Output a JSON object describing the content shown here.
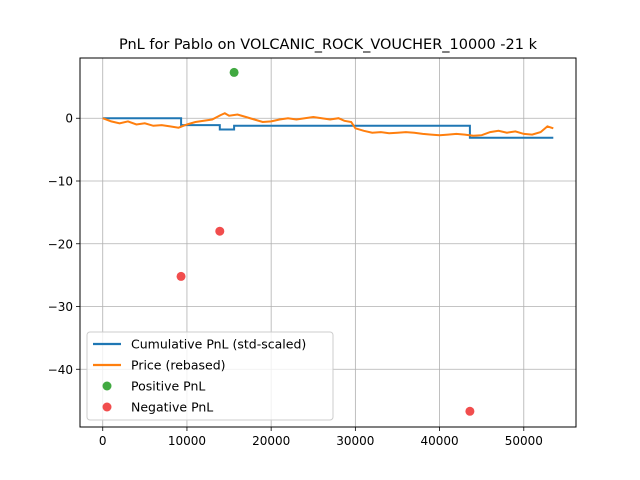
{
  "chart_data": {
    "type": "line",
    "title": "PnL for Pablo on VOLCANIC_ROCK_VOUCHER_10000 -21 k",
    "xlabel": "",
    "ylabel": "",
    "xlim": [
      -2700,
      56200
    ],
    "ylim": [
      -49.2,
      9.6
    ],
    "xticks": [
      0,
      10000,
      20000,
      30000,
      40000,
      50000
    ],
    "xtick_labels": [
      "0",
      "10000",
      "20000",
      "30000",
      "40000",
      "50000"
    ],
    "yticks": [
      0,
      -10,
      -20,
      -30,
      -40
    ],
    "ytick_labels": [
      "0",
      "−10",
      "−20",
      "−30",
      "−40"
    ],
    "grid": true,
    "legend_position": "lower-left",
    "series": [
      {
        "name": "Cumulative PnL (std-scaled)",
        "kind": "step",
        "color": "#1f77b4",
        "x": [
          0,
          9300,
          9300,
          13900,
          13900,
          15600,
          15600,
          43600,
          43600,
          53500
        ],
        "y": [
          0,
          0,
          -1.1,
          -1.1,
          -1.8,
          -1.8,
          -1.2,
          -1.2,
          -3.1,
          -3.1
        ]
      },
      {
        "name": "Price (rebased)",
        "kind": "line",
        "color": "#ff7f0e",
        "x": [
          0,
          1000,
          2000,
          3000,
          4000,
          5000,
          6000,
          7000,
          8000,
          9000,
          10000,
          11000,
          12000,
          13000,
          14000,
          14500,
          15000,
          16000,
          17000,
          18000,
          19000,
          20000,
          21000,
          22000,
          23000,
          24000,
          25000,
          26000,
          27000,
          28000,
          28700,
          29500,
          30000,
          31000,
          32000,
          33000,
          34000,
          35000,
          36000,
          37000,
          38000,
          39000,
          40000,
          41000,
          42000,
          43000,
          44000,
          45000,
          46000,
          47000,
          48000,
          49000,
          50000,
          51000,
          52000,
          52800,
          53500
        ],
        "y": [
          0,
          -0.5,
          -0.8,
          -0.5,
          -1.0,
          -0.8,
          -1.2,
          -1.1,
          -1.3,
          -1.5,
          -1.0,
          -0.6,
          -0.4,
          -0.2,
          0.5,
          0.8,
          0.4,
          0.6,
          0.2,
          -0.2,
          -0.6,
          -0.5,
          -0.2,
          0,
          -0.2,
          0,
          0.2,
          0,
          -0.2,
          0,
          -0.4,
          -0.6,
          -1.6,
          -2.0,
          -2.3,
          -2.2,
          -2.4,
          -2.3,
          -2.2,
          -2.3,
          -2.5,
          -2.6,
          -2.7,
          -2.6,
          -2.5,
          -2.6,
          -2.8,
          -2.7,
          -2.2,
          -2.0,
          -2.3,
          -2.1,
          -2.5,
          -2.6,
          -2.2,
          -1.3,
          -1.6
        ]
      }
    ],
    "scatter": [
      {
        "name": "Positive PnL",
        "color": "#2ca02c",
        "points": [
          [
            15600,
            7.3
          ]
        ]
      },
      {
        "name": "Negative PnL",
        "color": "#f03a3a",
        "points": [
          [
            9300,
            -25.2
          ],
          [
            13900,
            -18.0
          ],
          [
            43600,
            -46.7
          ]
        ]
      }
    ],
    "legend": [
      {
        "label": "Cumulative PnL (std-scaled)",
        "marker": "line",
        "color": "#1f77b4"
      },
      {
        "label": "Price (rebased)",
        "marker": "line",
        "color": "#ff7f0e"
      },
      {
        "label": "Positive PnL",
        "marker": "dot",
        "color": "#2ca02c"
      },
      {
        "label": "Negative PnL",
        "marker": "dot",
        "color": "#f03a3a"
      }
    ]
  }
}
